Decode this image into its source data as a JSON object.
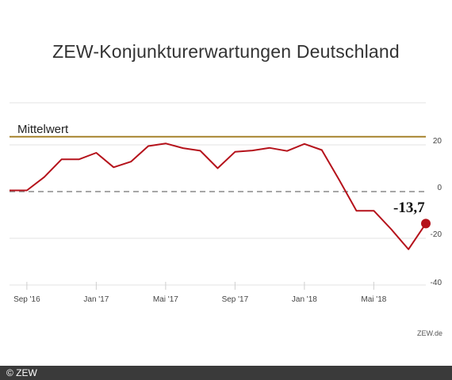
{
  "chart_title": "ZEW-Konjunkturerwartungen Deutschland",
  "source_label": "ZEW.de",
  "copyright": "© ZEW",
  "colors": {
    "series": "#b5121b",
    "mean_line": "#a07a1e",
    "zero_line": "#8a8a8a"
  },
  "chart_data": {
    "type": "line",
    "title": "ZEW-Konjunkturerwartungen Deutschland",
    "x": [
      "2016-08",
      "2016-09",
      "2016-10",
      "2016-11",
      "2016-12",
      "2017-01",
      "2017-02",
      "2017-03",
      "2017-04",
      "2017-05",
      "2017-06",
      "2017-07",
      "2017-08",
      "2017-09",
      "2017-10",
      "2017-11",
      "2017-12",
      "2018-01",
      "2018-02",
      "2018-03",
      "2018-04",
      "2018-05",
      "2018-06",
      "2018-07",
      "2018-08"
    ],
    "series": [
      {
        "values": [
          0.5,
          0.5,
          6.2,
          13.8,
          13.8,
          16.6,
          10.4,
          12.8,
          19.5,
          20.6,
          18.6,
          17.5,
          10.0,
          17.0,
          17.6,
          18.7,
          17.4,
          20.4,
          17.8,
          5.1,
          -8.2,
          -8.2,
          -16.1,
          -24.7,
          -13.7
        ]
      }
    ],
    "x_tick_labels": [
      "Sep '16",
      "Jan '17",
      "Mai '17",
      "Sep '17",
      "Jan '18",
      "Mai '18"
    ],
    "y_tick_labels": [
      "20",
      "0",
      "-20",
      "-40"
    ],
    "reference_line": {
      "label": "Mittelwert",
      "value": 23.5
    },
    "last_value_label": "-13,7",
    "ylim": [
      -40,
      35
    ],
    "grid": "horizontal"
  }
}
